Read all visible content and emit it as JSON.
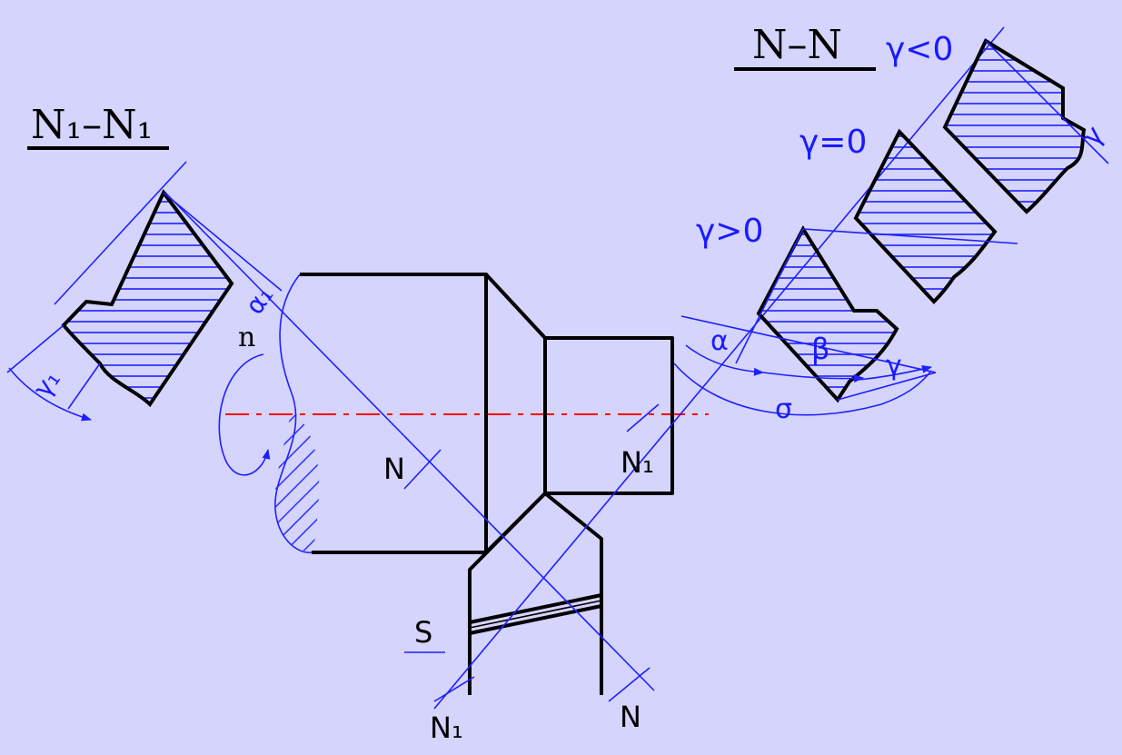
{
  "colors": {
    "background": "#d4d4fc",
    "outline": "#000000",
    "construction": "#2020ff",
    "axis": "#ff0000"
  },
  "sections": {
    "n1": {
      "title": "N₁–N₁",
      "angle_gamma1": "γ₁",
      "angle_alpha1": "α₁"
    },
    "n": {
      "title": "N–N",
      "gamma_neg": "γ<0",
      "gamma_zero": "γ=0",
      "gamma_pos": "γ>0",
      "alpha": "α",
      "beta": "β",
      "gamma": "γ",
      "sigma": "σ"
    }
  },
  "labels": {
    "rotation_n": "n",
    "cut_n_left": "N",
    "cut_n1_right": "N₁",
    "feed_s": "S",
    "cut_n1_bottom": "N₁",
    "cut_n_bottom": "N"
  }
}
